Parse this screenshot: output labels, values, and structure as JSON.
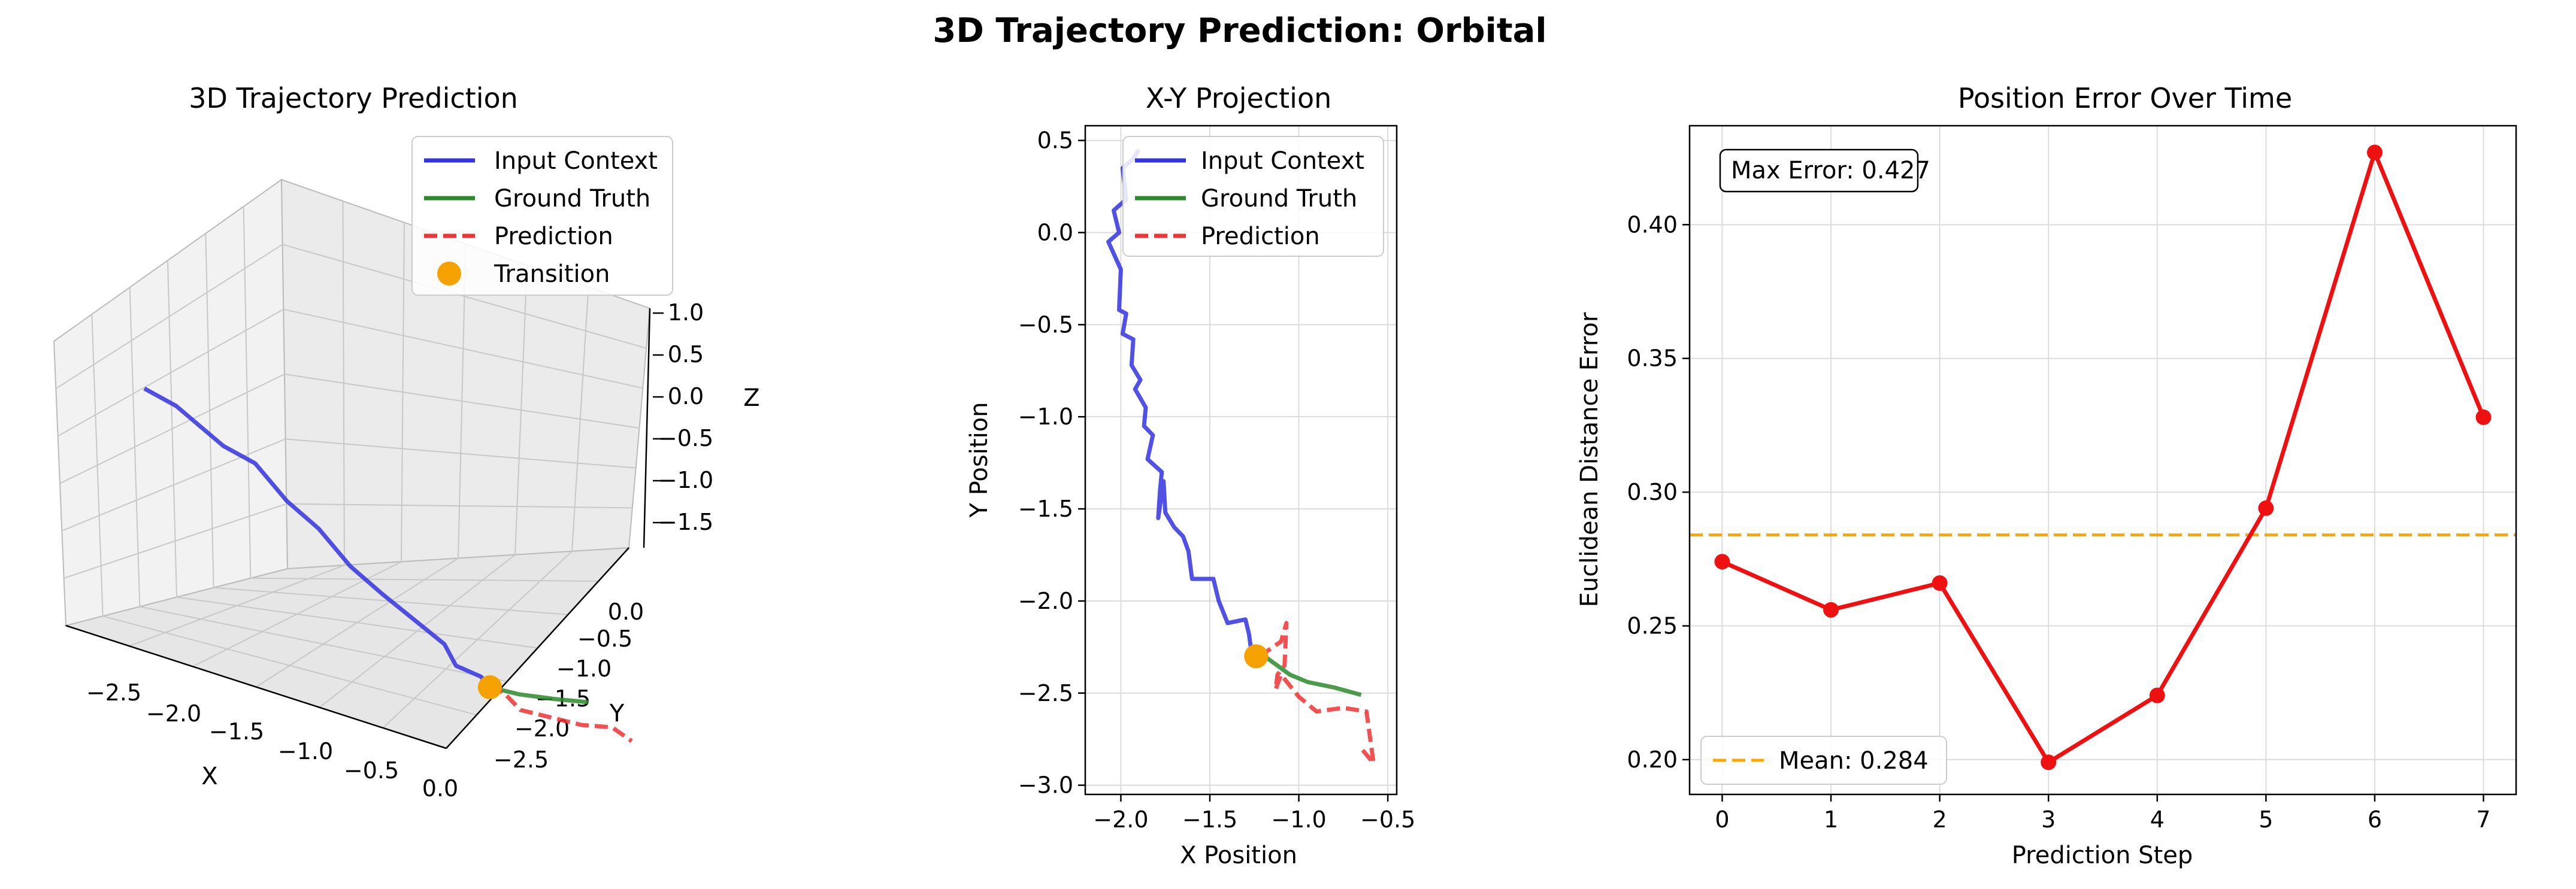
{
  "figure": {
    "title": "3D Trajectory Prediction: Orbital",
    "colors": {
      "input": "#3333e0",
      "truth": "#2a8a2a",
      "prediction": "#ee3333",
      "transition": "#f5a100",
      "error": "#ee1111",
      "mean": "#ffa500"
    }
  },
  "chart_data": [
    {
      "type": "line",
      "projection": "3d",
      "title": "3D Trajectory Prediction",
      "xlabel": "X",
      "ylabel": "Y",
      "zlabel": "Z",
      "x_ticks": [
        "−2.5",
        "−2.0",
        "−1.5",
        "−1.0",
        "−0.5",
        "0.0"
      ],
      "y_ticks": [
        "0.0",
        "−0.5",
        "−1.0",
        "−1.5",
        "−2.0",
        "−2.5"
      ],
      "z_ticks": [
        "1.0",
        "0.5",
        "0.0",
        "−0.5",
        "−1.0",
        "−1.5"
      ],
      "legend": [
        "Input Context",
        "Ground Truth",
        "Prediction",
        "Transition"
      ],
      "legend_position": "top-right",
      "grid": true,
      "series": [
        {
          "name": "Input Context",
          "x": [
            -2.1,
            -2.05,
            -1.95,
            -1.9,
            -1.85,
            -1.8,
            -1.75,
            -1.7,
            -1.6,
            -1.5,
            -1.45,
            -1.3,
            -1.25
          ],
          "y": [
            0.4,
            0.1,
            -0.3,
            -0.6,
            -0.9,
            -1.2,
            -1.5,
            -1.8,
            -2.0,
            -2.2,
            -2.25,
            -2.28,
            -2.3
          ],
          "z": [
            1.0,
            0.9,
            0.6,
            0.5,
            0.2,
            0.0,
            -0.3,
            -0.5,
            -0.7,
            -0.9,
            -1.1,
            -1.2,
            -1.3
          ]
        },
        {
          "name": "Ground Truth",
          "x": [
            -1.25,
            -1.1,
            -0.9,
            -0.7
          ],
          "y": [
            -2.3,
            -2.38,
            -2.45,
            -2.5
          ],
          "z": [
            -1.3,
            -1.35,
            -1.38,
            -1.4
          ]
        },
        {
          "name": "Prediction",
          "x": [
            -1.25,
            -1.05,
            -1.1,
            -0.8,
            -0.65,
            -0.6
          ],
          "y": [
            -2.3,
            -2.1,
            -2.4,
            -2.6,
            -2.7,
            -2.85
          ],
          "z": [
            -1.3,
            -1.4,
            -1.5,
            -1.6,
            -1.6,
            -1.7
          ]
        },
        {
          "name": "Transition",
          "x": [
            -1.25
          ],
          "y": [
            -2.3
          ],
          "z": [
            -1.3
          ]
        }
      ]
    },
    {
      "type": "line",
      "title": "X-Y Projection",
      "xlabel": "X Position",
      "ylabel": "Y Position",
      "xlim": [
        -2.2,
        -0.45
      ],
      "ylim": [
        -3.05,
        0.58
      ],
      "x_ticks": [
        -2.0,
        -1.5,
        -1.0,
        -0.5
      ],
      "y_ticks": [
        0.5,
        0.0,
        -0.5,
        -1.0,
        -1.5,
        -2.0,
        -2.5,
        -3.0
      ],
      "legend": [
        "Input Context",
        "Ground Truth",
        "Prediction"
      ],
      "legend_position": "top-right",
      "grid": true,
      "series": [
        {
          "name": "Input Context",
          "x": [
            -1.9,
            -1.93,
            -1.99,
            -1.97,
            -2.04,
            -2.01,
            -2.07,
            -2.0,
            -2.01,
            -1.97,
            -1.99,
            -1.93,
            -1.94,
            -1.89,
            -1.92,
            -1.86,
            -1.87,
            -1.82,
            -1.85,
            -1.77,
            -1.78,
            -1.79,
            -1.76,
            -1.75,
            -1.7,
            -1.65,
            -1.62,
            -1.6,
            -1.48,
            -1.45,
            -1.4,
            -1.3,
            -1.28,
            -1.27,
            -1.22
          ],
          "y": [
            0.45,
            0.4,
            0.35,
            0.18,
            0.12,
            0.0,
            -0.05,
            -0.2,
            -0.42,
            -0.44,
            -0.55,
            -0.58,
            -0.72,
            -0.8,
            -0.85,
            -0.95,
            -1.05,
            -1.1,
            -1.23,
            -1.3,
            -1.4,
            -1.55,
            -1.35,
            -1.52,
            -1.6,
            -1.65,
            -1.73,
            -1.88,
            -1.88,
            -2.0,
            -2.12,
            -2.1,
            -2.18,
            -2.25,
            -2.28
          ]
        },
        {
          "name": "Ground Truth",
          "x": [
            -1.22,
            -1.15,
            -1.05,
            -0.95,
            -0.8,
            -0.65
          ],
          "y": [
            -2.28,
            -2.33,
            -2.4,
            -2.44,
            -2.47,
            -2.51
          ]
        },
        {
          "name": "Prediction",
          "x": [
            -1.22,
            -1.1,
            -1.07,
            -1.08,
            -1.12,
            -1.13,
            -1.1,
            -1.0,
            -0.9,
            -0.75,
            -0.62,
            -0.58,
            -0.65
          ],
          "y": [
            -2.3,
            -2.22,
            -2.12,
            -2.35,
            -2.4,
            -2.48,
            -2.4,
            -2.52,
            -2.6,
            -2.58,
            -2.6,
            -2.88,
            -2.8
          ]
        },
        {
          "name": "Transition",
          "x": [
            -1.24
          ],
          "y": [
            -2.3
          ]
        }
      ]
    },
    {
      "type": "line",
      "title": "Position Error Over Time",
      "xlabel": "Prediction Step",
      "ylabel": "Euclidean Distance Error",
      "xlim": [
        -0.3,
        7.3
      ],
      "ylim": [
        0.187,
        0.437
      ],
      "x_ticks": [
        0,
        1,
        2,
        3,
        4,
        5,
        6,
        7
      ],
      "y_ticks": [
        0.2,
        0.25,
        0.3,
        0.35,
        0.4
      ],
      "grid": true,
      "annotation": "Max Error: 0.427",
      "legend": [
        "Mean: 0.284"
      ],
      "legend_position": "bottom-left",
      "mean": 0.284,
      "x": [
        0,
        1,
        2,
        3,
        4,
        5,
        6,
        7
      ],
      "values": [
        0.274,
        0.256,
        0.266,
        0.199,
        0.224,
        0.294,
        0.427,
        0.328
      ]
    }
  ]
}
